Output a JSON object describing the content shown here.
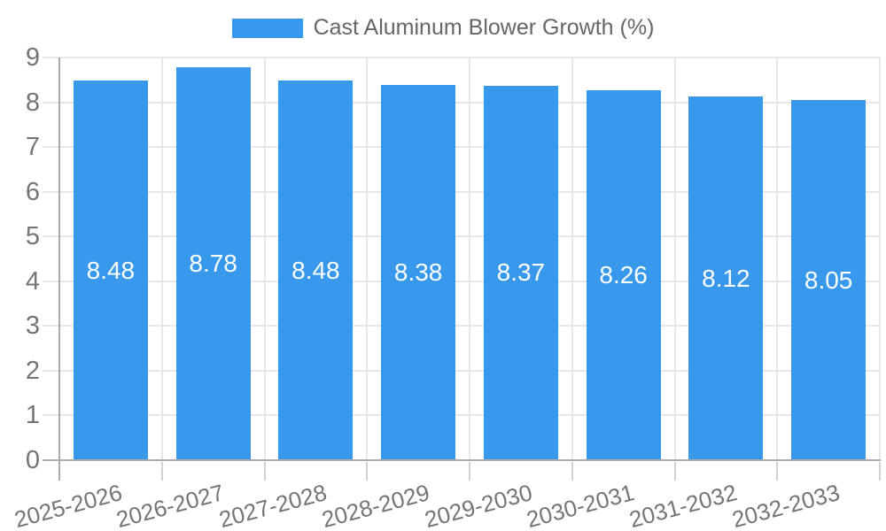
{
  "chart_data": {
    "type": "bar",
    "title": "Cast Aluminum Blower Growth (%)",
    "categories": [
      "2025-2026",
      "2026-2027",
      "2027-2028",
      "2028-2029",
      "2029-2030",
      "2030-2031",
      "2031-2032",
      "2032-2033"
    ],
    "values": [
      8.48,
      8.78,
      8.48,
      8.38,
      8.37,
      8.26,
      8.12,
      8.05
    ],
    "value_labels": [
      "8.48",
      "8.78",
      "8.48",
      "8.38",
      "8.37",
      "8.26",
      "8.12",
      "8.05"
    ],
    "xlabel": "",
    "ylabel": "",
    "ylim": [
      0,
      9
    ],
    "y_ticks": [
      0,
      1,
      2,
      3,
      4,
      5,
      6,
      7,
      8,
      9
    ],
    "grid": true,
    "legend_position": "top-center",
    "x_label_rotation_deg": -15,
    "colors": {
      "bar": "#3899EC",
      "grid_line": "#e7e7e7",
      "axis_line": "#ababab",
      "below_axis_tick": "#d2d2d2",
      "tick_label": "#757575",
      "legend_text": "#666666",
      "bar_value_text": "#ffffff",
      "background": "#ffffff"
    }
  }
}
